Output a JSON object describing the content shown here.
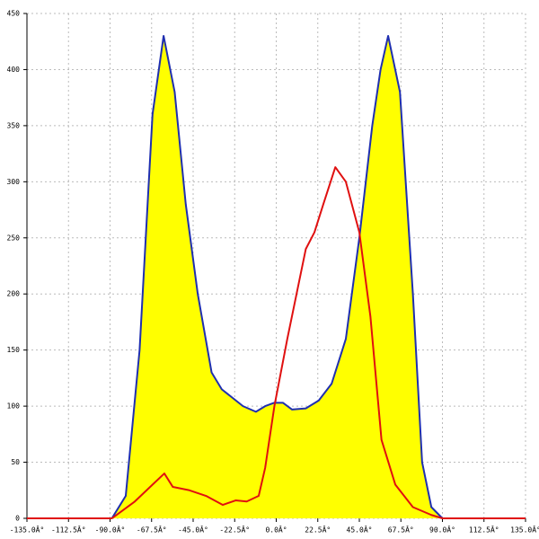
{
  "chart_data": {
    "type": "area-line",
    "grid": true,
    "xlim": [
      -135,
      135
    ],
    "ylim": [
      0,
      450
    ],
    "xticks": [
      {
        "value": -135,
        "label": "-135.0Â°"
      },
      {
        "value": -112.5,
        "label": "-112.5Â°"
      },
      {
        "value": -90,
        "label": "-90.0Â°"
      },
      {
        "value": -67.5,
        "label": "-67.5Â°"
      },
      {
        "value": -45,
        "label": "-45.0Â°"
      },
      {
        "value": -22.5,
        "label": "-22.5Â°"
      },
      {
        "value": 0,
        "label": "0.0Â°"
      },
      {
        "value": 22.5,
        "label": "22.5Â°"
      },
      {
        "value": 45,
        "label": "45.0Â°"
      },
      {
        "value": 67.5,
        "label": "67.5Â°"
      },
      {
        "value": 90,
        "label": "90.0Â°"
      },
      {
        "value": 112.5,
        "label": "112.5Â°"
      },
      {
        "value": 135,
        "label": "135.0Â°"
      }
    ],
    "yticks": [
      0,
      50,
      100,
      150,
      200,
      250,
      300,
      350,
      400,
      450
    ],
    "series": [
      {
        "color": "#1f2fb0",
        "fill": "#ffff00",
        "x": [
          -89,
          -81.5,
          -74,
          -67,
          -61,
          -55,
          -49,
          -42.5,
          -35,
          -29.5,
          -18,
          -11,
          -6,
          -1,
          3.6,
          8.5,
          16,
          23,
          30,
          37.7,
          45,
          52,
          56.5,
          60.6,
          67,
          74,
          79,
          84,
          90
        ],
        "values": [
          0,
          20,
          150,
          360,
          430,
          380,
          280,
          200,
          130,
          115,
          100,
          95,
          100,
          103,
          103,
          97,
          98,
          105,
          120,
          160,
          250,
          350,
          400,
          430,
          380,
          200,
          50,
          10,
          0
        ]
      },
      {
        "color": "#e01010",
        "x": [
          -135,
          -89,
          -76.6,
          -67,
          -60.6,
          -56,
          -47,
          -38,
          -29,
          -22,
          -16,
          -9.5,
          -6,
          -1,
          6,
          16,
          20.7,
          25.5,
          32,
          37.7,
          45,
          51,
          57,
          64.5,
          74,
          84,
          90,
          135
        ],
        "values": [
          0,
          0,
          15,
          30,
          40,
          28,
          25,
          20,
          12,
          16,
          15,
          20,
          45,
          100,
          160,
          240,
          255,
          280,
          313,
          300,
          255,
          180,
          70,
          30,
          10,
          3,
          0,
          0
        ]
      }
    ]
  }
}
